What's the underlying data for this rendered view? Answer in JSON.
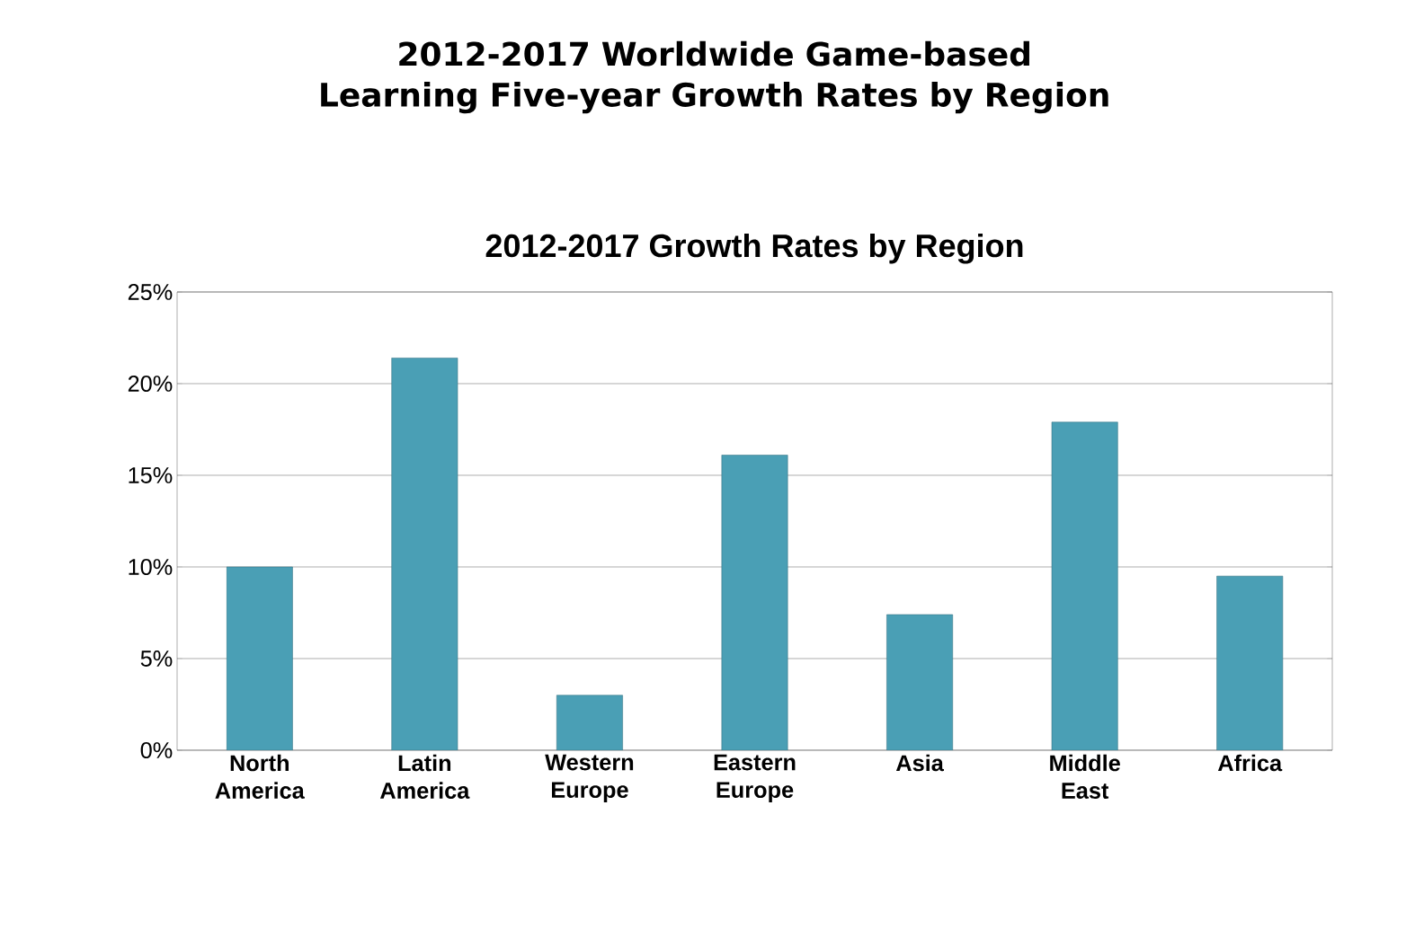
{
  "chart_data": {
    "type": "bar",
    "title": "2012-2017 Worldwide Game-based Learning Five-year Growth Rates by Region",
    "subtitle": "2012-2017 Growth Rates by Region",
    "categories": [
      "North America",
      "Latin America",
      "Western Europe",
      "Eastern Europe",
      "Asia",
      "Middle East",
      "Africa"
    ],
    "values": [
      10,
      21.4,
      3.0,
      16.1,
      7.4,
      17.9,
      9.5
    ],
    "color": "#4a9fb5",
    "ylim": [
      0,
      25
    ],
    "yticks": [
      {
        "value": 0,
        "label": "0%"
      },
      {
        "value": 5,
        "label": "5%"
      },
      {
        "value": 10,
        "label": "10%"
      },
      {
        "value": 15,
        "label": "15%"
      },
      {
        "value": 20,
        "label": "20%"
      },
      {
        "value": 25,
        "label": "25%"
      }
    ],
    "grid": "y"
  }
}
